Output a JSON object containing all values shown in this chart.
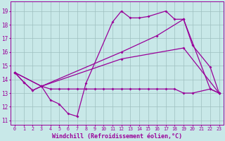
{
  "background_color": "#c8e8e8",
  "grid_color": "#9dbfbf",
  "line_color": "#990099",
  "xlabel": "Windchill (Refroidissement éolien,°C)",
  "xlabel_fontsize": 6.0,
  "ylim": [
    10.7,
    19.7
  ],
  "xlim": [
    -0.5,
    23.5
  ],
  "yticks": [
    11,
    12,
    13,
    14,
    15,
    16,
    17,
    18,
    19
  ],
  "xtick_labels": [
    "0",
    "1",
    "2",
    "3",
    "4",
    "5",
    "6",
    "7",
    "8",
    "9",
    "10",
    "11",
    "12",
    "13",
    "14",
    "15",
    "16",
    "17",
    "18",
    "19",
    "20",
    "21",
    "22",
    "23"
  ],
  "series": [
    {
      "x": [
        0,
        1,
        2,
        3,
        4,
        5,
        6,
        7,
        8,
        11,
        12,
        13,
        14,
        15,
        17,
        18,
        19,
        22,
        23
      ],
      "y": [
        14.5,
        13.8,
        13.2,
        13.5,
        12.5,
        12.2,
        11.5,
        11.3,
        13.7,
        18.2,
        19.0,
        18.5,
        18.5,
        18.6,
        19.0,
        18.4,
        18.4,
        13.3,
        13.0
      ]
    },
    {
      "x": [
        0,
        1,
        2,
        3,
        4,
        5,
        6,
        7,
        8,
        9,
        10,
        11,
        12,
        13,
        14,
        15,
        16,
        17,
        18,
        19,
        20,
        22,
        23
      ],
      "y": [
        14.5,
        13.8,
        13.2,
        13.5,
        13.3,
        13.3,
        13.3,
        13.3,
        13.3,
        13.3,
        13.3,
        13.3,
        13.3,
        13.3,
        13.3,
        13.3,
        13.3,
        13.3,
        13.3,
        13.0,
        13.0,
        13.3,
        13.0
      ]
    },
    {
      "x": [
        0,
        3,
        12,
        16,
        19,
        20,
        22,
        23
      ],
      "y": [
        14.5,
        13.5,
        16.0,
        17.2,
        18.4,
        16.5,
        14.9,
        13.0
      ]
    },
    {
      "x": [
        0,
        3,
        12,
        19,
        23
      ],
      "y": [
        14.5,
        13.5,
        15.5,
        16.3,
        13.0
      ]
    }
  ]
}
